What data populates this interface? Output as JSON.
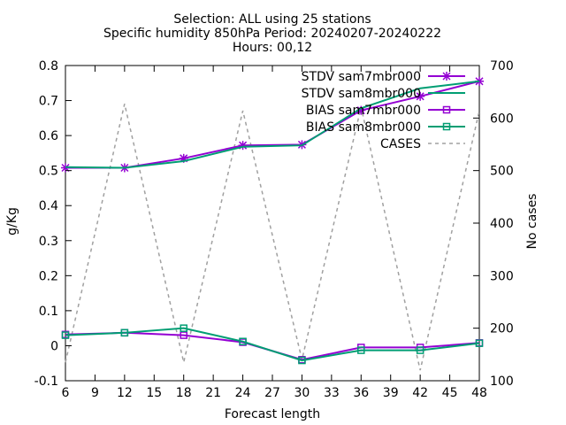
{
  "chart_data": {
    "type": "line",
    "title_lines": [
      "Selection: ALL using    25 stations",
      "Specific humidity 850hPa   Period: 20240207-20240222",
      "Hours: 00,12"
    ],
    "xlabel": "Forecast length",
    "ylabel": "g/Kg",
    "y2label": "No cases",
    "x": [
      6,
      12,
      18,
      24,
      30,
      36,
      42,
      48
    ],
    "xlim": [
      6,
      48
    ],
    "xticks": [
      "6",
      "9",
      "12",
      "15",
      "18",
      "21",
      "24",
      "27",
      "30",
      "33",
      "36",
      "39",
      "42",
      "45",
      "48"
    ],
    "ylim": [
      -0.1,
      0.8
    ],
    "yticks": [
      "-0.1",
      "0",
      "0.1",
      "0.2",
      "0.3",
      "0.4",
      "0.5",
      "0.6",
      "0.7",
      "0.8"
    ],
    "y2lim": [
      100,
      700
    ],
    "y2ticks": [
      "100",
      "200",
      "300",
      "400",
      "500",
      "600",
      "700"
    ],
    "grid": false,
    "legend_position": "top-right",
    "series": [
      {
        "name": "STDV sam7mbr000",
        "color": "#9400d3",
        "marker": "star",
        "axis": "y",
        "values": [
          0.508,
          0.508,
          0.535,
          0.572,
          0.574,
          0.672,
          0.712,
          0.755
        ]
      },
      {
        "name": "STDV sam8mbr000",
        "color": "#009e73",
        "marker": "none",
        "axis": "y",
        "values": [
          0.51,
          0.508,
          0.527,
          0.568,
          0.572,
          0.678,
          0.735,
          0.755
        ]
      },
      {
        "name": "BIAS sam7mbr000",
        "color": "#9400d3",
        "marker": "square",
        "axis": "y",
        "values": [
          0.032,
          0.037,
          0.03,
          0.01,
          -0.04,
          -0.005,
          -0.005,
          0.008
        ]
      },
      {
        "name": "BIAS sam8mbr000",
        "color": "#009e73",
        "marker": "square",
        "axis": "y",
        "values": [
          0.03,
          0.037,
          0.05,
          0.012,
          -0.042,
          -0.013,
          -0.013,
          0.007
        ]
      },
      {
        "name": "CASES",
        "color": "#a0a0a0",
        "marker": "none",
        "dashed": true,
        "axis": "y2",
        "values": [
          135,
          627,
          135,
          614,
          140,
          621,
          120,
          614
        ]
      }
    ]
  }
}
